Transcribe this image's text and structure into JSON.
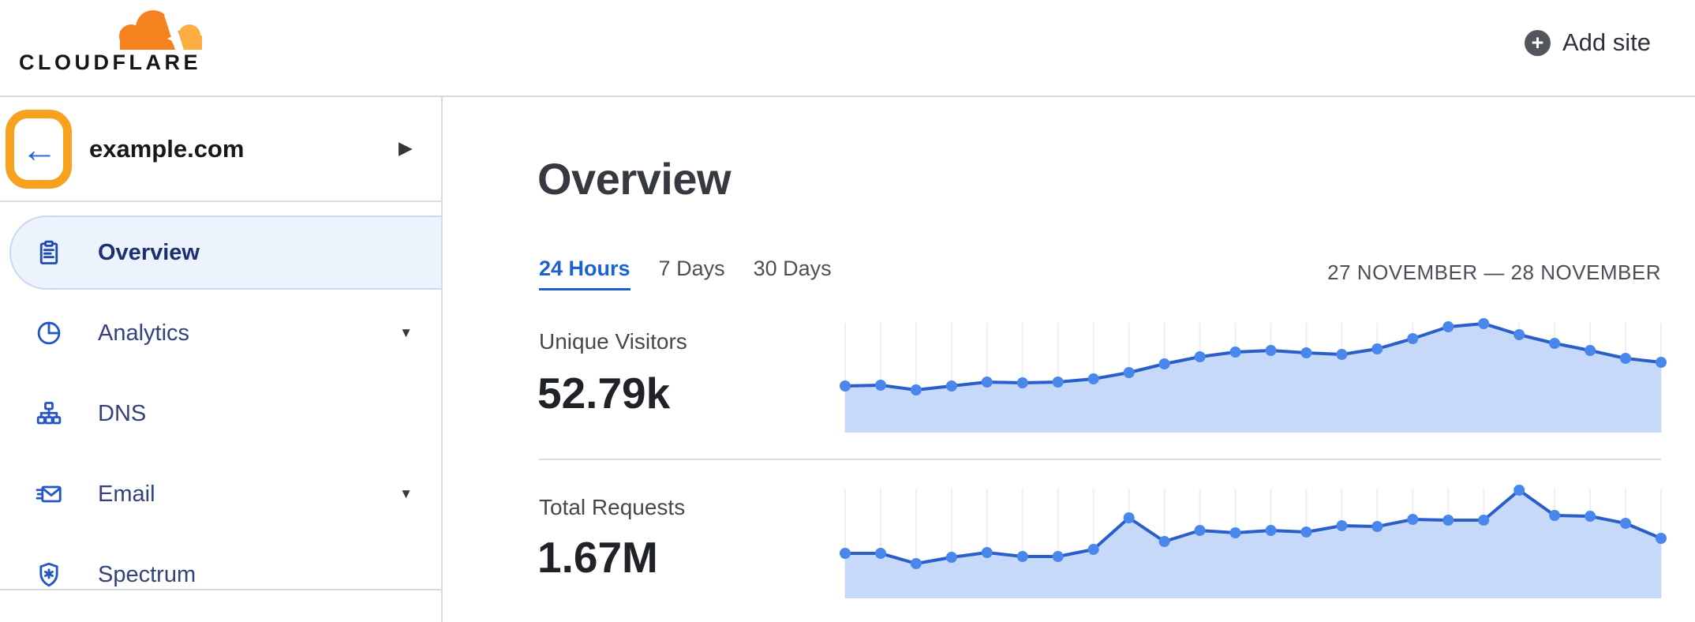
{
  "header": {
    "logo_text": "CLOUDFLARE",
    "add_site_label": "Add site"
  },
  "glyphs": {
    "plus": "+",
    "back_arrow": "←",
    "caret_right": "▶",
    "caret_down": "▼"
  },
  "sidebar": {
    "domain": "example.com",
    "items": [
      {
        "label": "Overview",
        "icon": "clipboard-icon",
        "active": true,
        "has_caret": false
      },
      {
        "label": "Analytics",
        "icon": "pie-chart-icon",
        "active": false,
        "has_caret": true
      },
      {
        "label": "DNS",
        "icon": "sitemap-icon",
        "active": false,
        "has_caret": false
      },
      {
        "label": "Email",
        "icon": "email-icon",
        "active": false,
        "has_caret": true
      },
      {
        "label": "Spectrum",
        "icon": "shield-icon",
        "active": false,
        "has_caret": false
      }
    ]
  },
  "main": {
    "title": "Overview",
    "tabs": [
      {
        "label": "24 Hours",
        "active": true
      },
      {
        "label": "7 Days",
        "active": false
      },
      {
        "label": "30 Days",
        "active": false
      }
    ],
    "date_range": "27 NOVEMBER — 28 NOVEMBER",
    "stats": [
      {
        "label": "Unique Visitors",
        "value": "52.79k"
      },
      {
        "label": "Total Requests",
        "value": "1.67M"
      }
    ]
  },
  "annotation": {
    "shape": "rounded-rectangle-outline",
    "color": "#F6A21F",
    "target": "back-button"
  },
  "colors": {
    "accent_blue": "#1A62D0",
    "sidebar_link_blue": "#2456C3",
    "logo_orange": "#F6821F",
    "logo_orange_light": "#FBAD41",
    "annotation_orange": "#F6A21F",
    "divider_gray": "#D7DADD",
    "chart": {
      "line": "#2A5FC9",
      "dot": "#4A87EC",
      "fill": "#C6D9F8",
      "gridline": "#ECEFF3"
    }
  },
  "chart_data": [
    {
      "type": "area",
      "title": "Unique Visitors",
      "summary_value": "52.79k",
      "x_description": "24 hourly points over the 24-hour window (27 November — 28 November)",
      "x": [
        0,
        1,
        2,
        3,
        4,
        5,
        6,
        7,
        8,
        9,
        10,
        11,
        12,
        13,
        14,
        15,
        16,
        17,
        18,
        19,
        20,
        21,
        22,
        23
      ],
      "values_rel": [
        59,
        60,
        54,
        59,
        64,
        63,
        64,
        68,
        76,
        87,
        96,
        102,
        104,
        101,
        99,
        106,
        119,
        134,
        138,
        124,
        113,
        104,
        94,
        89
      ],
      "value_units": "relative height (no y-axis labels shown)",
      "ylim_rel": [
        0,
        145
      ],
      "grid": "vertical gridline at each point",
      "legend": "none",
      "axes_labeled": false
    },
    {
      "type": "area",
      "title": "Total Requests",
      "summary_value": "1.67M",
      "x_description": "24 hourly points over the 24-hour window (27 November — 28 November)",
      "x": [
        0,
        1,
        2,
        3,
        4,
        5,
        6,
        7,
        8,
        9,
        10,
        11,
        12,
        13,
        14,
        15,
        16,
        17,
        18,
        19,
        20,
        21,
        22,
        23
      ],
      "values_rel": [
        57,
        57,
        44,
        52,
        58,
        53,
        53,
        62,
        102,
        72,
        86,
        83,
        86,
        84,
        92,
        91,
        100,
        99,
        99,
        137,
        105,
        104,
        95,
        76
      ],
      "value_units": "relative height (no y-axis labels shown)",
      "ylim_rel": [
        0,
        145
      ],
      "grid": "vertical gridline at each point",
      "legend": "none",
      "axes_labeled": false
    }
  ]
}
